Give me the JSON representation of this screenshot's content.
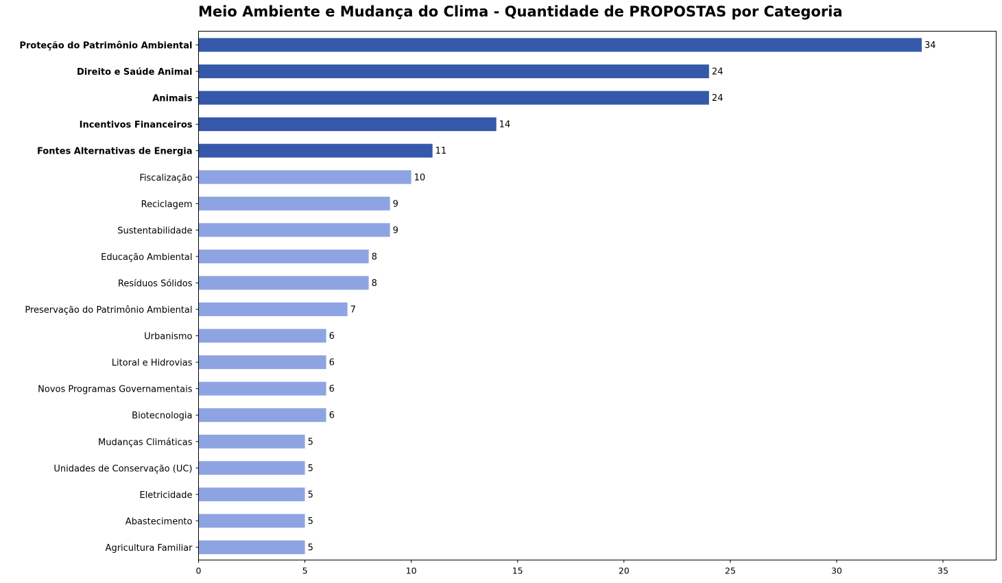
{
  "chart_data": {
    "type": "bar",
    "orientation": "horizontal",
    "title": "Meio Ambiente e Mudança do Clima - Quantidade de PROPOSTAS por Categoria",
    "xlabel": "",
    "ylabel": "",
    "xlim": [
      0,
      37.5
    ],
    "xticks": [
      0,
      5,
      10,
      15,
      20,
      25,
      30,
      35
    ],
    "grid": false,
    "highlight_color": "#3558aa",
    "base_color": "#8ea4e2",
    "categories": [
      "Proteção do Patrimônio Ambiental",
      "Direito e Saúde Animal",
      "Animais",
      "Incentivos Financeiros",
      "Fontes Alternativas de Energia",
      "Fiscalização",
      "Reciclagem",
      "Sustentabilidade",
      "Educação Ambiental",
      "Resíduos Sólidos",
      "Preservação do Patrimônio Ambiental",
      "Urbanismo",
      "Litoral e Hidrovias",
      "Novos Programas Governamentais",
      "Biotecnologia",
      "Mudanças Climáticas",
      "Unidades de Conservação (UC)",
      "Eletricidade",
      "Abastecimento",
      "Agricultura Familiar"
    ],
    "values": [
      34,
      24,
      24,
      14,
      11,
      10,
      9,
      9,
      8,
      8,
      7,
      6,
      6,
      6,
      6,
      5,
      5,
      5,
      5,
      5
    ],
    "highlighted": [
      true,
      true,
      true,
      true,
      true,
      false,
      false,
      false,
      false,
      false,
      false,
      false,
      false,
      false,
      false,
      false,
      false,
      false,
      false,
      false
    ]
  }
}
